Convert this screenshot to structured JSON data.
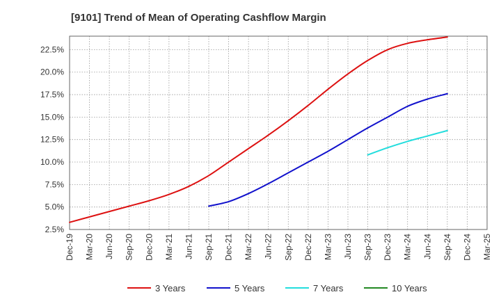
{
  "chart_data": {
    "type": "line",
    "title": "[9101]  Trend of Mean of Operating Cashflow Margin",
    "xlabel": "",
    "ylabel": "",
    "ylim": [
      2.5,
      24.0
    ],
    "grid": true,
    "legend_position": "bottom",
    "y_ticks": [
      2.5,
      5.0,
      7.5,
      10.0,
      12.5,
      15.0,
      17.5,
      20.0,
      22.5
    ],
    "y_tick_labels": [
      "2.5%",
      "5.0%",
      "7.5%",
      "10.0%",
      "12.5%",
      "15.0%",
      "17.5%",
      "20.0%",
      "22.5%"
    ],
    "x_tick_labels": [
      "Dec-19",
      "Mar-20",
      "Jun-20",
      "Sep-20",
      "Dec-20",
      "Mar-21",
      "Jun-21",
      "Sep-21",
      "Dec-21",
      "Mar-22",
      "Jun-22",
      "Sep-22",
      "Dec-22",
      "Mar-23",
      "Jun-23",
      "Sep-23",
      "Dec-23",
      "Mar-24",
      "Jun-24",
      "Sep-24",
      "Dec-24",
      "Mar-25"
    ],
    "series": [
      {
        "name": "3 Years",
        "color": "#dd1111",
        "start_index": 0,
        "values": [
          3.3,
          3.9,
          4.5,
          5.1,
          5.7,
          6.4,
          7.3,
          8.5,
          10.0,
          11.5,
          13.0,
          14.6,
          16.3,
          18.1,
          19.8,
          21.3,
          22.5,
          23.2,
          23.6,
          23.9
        ]
      },
      {
        "name": "5 Years",
        "color": "#1111cc",
        "start_index": 7,
        "values": [
          5.1,
          5.6,
          6.5,
          7.6,
          8.8,
          10.0,
          11.2,
          12.5,
          13.8,
          15.0,
          16.2,
          17.0,
          17.6
        ]
      },
      {
        "name": "7 Years",
        "color": "#22dddd",
        "start_index": 15,
        "values": [
          10.8,
          11.6,
          12.3,
          12.9,
          13.5
        ]
      },
      {
        "name": "10 Years",
        "color": "#228822",
        "start_index": 0,
        "values": []
      }
    ]
  }
}
